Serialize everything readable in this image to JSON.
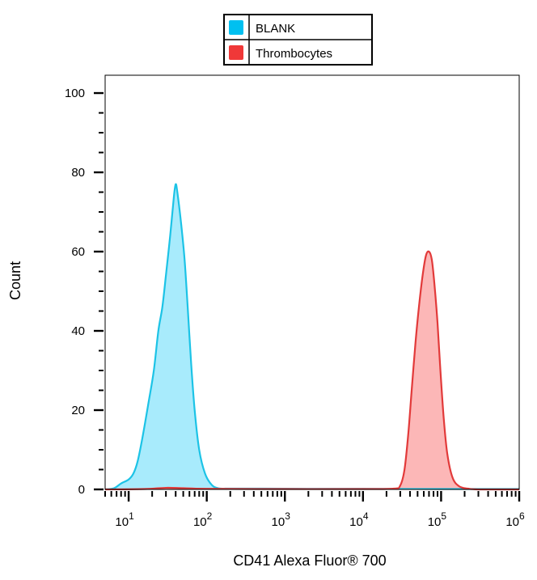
{
  "chart_data": {
    "type": "area",
    "xlabel": "CD41 Alexa Fluor® 700",
    "ylabel": "Count",
    "x_scale": "log",
    "xlim": [
      5,
      1000000
    ],
    "ylim": [
      0,
      100
    ],
    "y_ticks": [
      0,
      20,
      40,
      60,
      80,
      100
    ],
    "y_tick_labels": [
      "0",
      "20",
      "40",
      "60",
      "80",
      "100"
    ],
    "x_ticks": [
      {
        "base": "10",
        "exp": "1",
        "value": 10
      },
      {
        "base": "10",
        "exp": "2",
        "value": 100
      },
      {
        "base": "10",
        "exp": "3",
        "value": 1000
      },
      {
        "base": "10",
        "exp": "4",
        "value": 10000
      },
      {
        "base": "10",
        "exp": "5",
        "value": 100000
      },
      {
        "base": "10",
        "exp": "6",
        "value": 1000000
      }
    ],
    "legend_position": "top-center",
    "grid": false,
    "series": [
      {
        "name": "BLANK",
        "fill": "#99e8fb",
        "stroke": "#1cc3e6",
        "legend_color": "#00c0f0",
        "points": [
          [
            5,
            0
          ],
          [
            6.5,
            0.3
          ],
          [
            8,
            1.5
          ],
          [
            10,
            2.5
          ],
          [
            11.5,
            4
          ],
          [
            13,
            7
          ],
          [
            15,
            13
          ],
          [
            18,
            22
          ],
          [
            21,
            30
          ],
          [
            24,
            40
          ],
          [
            27,
            46
          ],
          [
            30,
            54
          ],
          [
            34,
            64
          ],
          [
            38,
            74
          ],
          [
            40,
            77
          ],
          [
            42,
            75
          ],
          [
            47,
            67
          ],
          [
            52,
            58
          ],
          [
            57,
            46
          ],
          [
            63,
            32
          ],
          [
            70,
            20
          ],
          [
            80,
            10
          ],
          [
            95,
            4
          ],
          [
            115,
            1.2
          ],
          [
            140,
            0.3
          ],
          [
            200,
            0.2
          ],
          [
            500,
            0.2
          ],
          [
            2000,
            0.15
          ],
          [
            10000,
            0.15
          ],
          [
            100000,
            0.1
          ],
          [
            1000000,
            0.1
          ]
        ]
      },
      {
        "name": "Thrombocytes",
        "fill": "#fbaaaa",
        "stroke": "#e23a3a",
        "legend_color": "#f03838",
        "points": [
          [
            5,
            0
          ],
          [
            16,
            0.1
          ],
          [
            30,
            0.4
          ],
          [
            50,
            0.3
          ],
          [
            100,
            0.15
          ],
          [
            1000,
            0.1
          ],
          [
            10000,
            0.1
          ],
          [
            25000,
            0.2
          ],
          [
            30000,
            1
          ],
          [
            34000,
            5
          ],
          [
            38000,
            14
          ],
          [
            42000,
            25
          ],
          [
            47000,
            37
          ],
          [
            52000,
            46
          ],
          [
            58000,
            54
          ],
          [
            64000,
            59
          ],
          [
            70000,
            60
          ],
          [
            76000,
            58
          ],
          [
            82000,
            52
          ],
          [
            90000,
            42
          ],
          [
            98000,
            30
          ],
          [
            108000,
            18
          ],
          [
            120000,
            9
          ],
          [
            140000,
            3
          ],
          [
            170000,
            0.8
          ],
          [
            220000,
            0.2
          ],
          [
            300000,
            0
          ],
          [
            1000000,
            0
          ]
        ]
      }
    ]
  }
}
